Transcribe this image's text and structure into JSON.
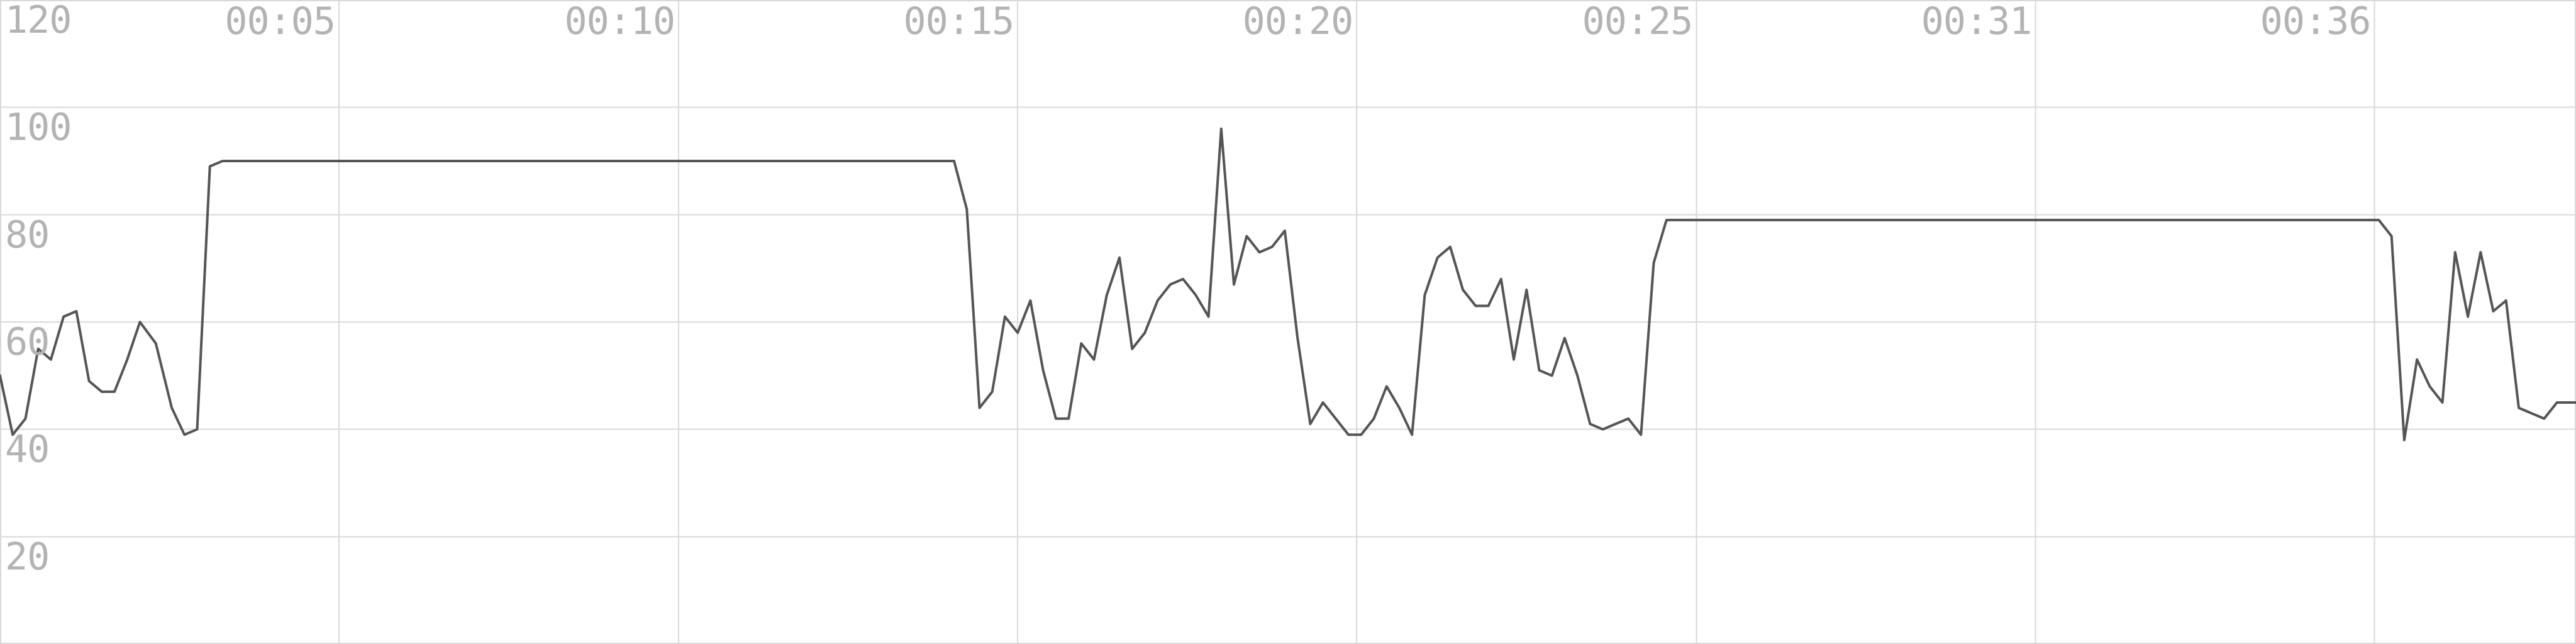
{
  "chart_data": {
    "type": "line",
    "title": "",
    "xlabel": "",
    "ylabel": "",
    "ylim": [
      0,
      120
    ],
    "xlim": [
      0,
      40.5
    ],
    "grid": true,
    "legend": "none",
    "colors": {
      "line": "#555555",
      "grid": "#d9d9d9",
      "tick_label": "#b3b3b3",
      "background": "#ffffff"
    },
    "y_ticks": [
      {
        "value": 120,
        "label": "120"
      },
      {
        "value": 100,
        "label": "100"
      },
      {
        "value": 80,
        "label": "80"
      },
      {
        "value": 60,
        "label": "60"
      },
      {
        "value": 40,
        "label": "40"
      },
      {
        "value": 20,
        "label": "20"
      }
    ],
    "x_ticks": [
      {
        "value": 5.33,
        "label": "00:05"
      },
      {
        "value": 10.67,
        "label": "00:10"
      },
      {
        "value": 16.0,
        "label": "00:15"
      },
      {
        "value": 21.33,
        "label": "00:20"
      },
      {
        "value": 26.67,
        "label": "00:25"
      },
      {
        "value": 32.0,
        "label": "00:31"
      },
      {
        "value": 37.33,
        "label": "00:36"
      }
    ],
    "series": [
      {
        "x": [
          0,
          0.2,
          0.4,
          0.6,
          0.8,
          1.0,
          1.2,
          1.4,
          1.6,
          1.8,
          2.0,
          2.2,
          2.45,
          2.7,
          2.9,
          3.1,
          3.3,
          3.5,
          3.7,
          3.9,
          4.1,
          4.3,
          4.5,
          4.7,
          4.9,
          5.1,
          5.3,
          5.5,
          5.8,
          6.5,
          7.5,
          8.5,
          9.5,
          10.5,
          11.5,
          12.5,
          13.5,
          14.5,
          15.0,
          15.2,
          15.4,
          15.6,
          15.8,
          16.0,
          16.2,
          16.4,
          16.6,
          16.8,
          17.0,
          17.2,
          17.4,
          17.6,
          17.8,
          18.0,
          18.2,
          18.4,
          18.6,
          18.8,
          19.0,
          19.2,
          19.4,
          19.6,
          19.8,
          20.0,
          20.2,
          20.4,
          20.6,
          20.8,
          21.0,
          21.2,
          21.4,
          21.6,
          21.8,
          22.0,
          22.2,
          22.4,
          22.6,
          22.8,
          23.0,
          23.2,
          23.4,
          23.6,
          23.8,
          24.0,
          24.2,
          24.4,
          24.6,
          24.8,
          25.0,
          25.2,
          25.4,
          25.6,
          25.8,
          26.0,
          26.2,
          26.4,
          26.6,
          26.8,
          27.0,
          27.5,
          28.5,
          29.5,
          29.7,
          29.9,
          30.5,
          31.5,
          32.5,
          33.5,
          34.5,
          35.5,
          36.5,
          37.4,
          37.6,
          37.8,
          38.0,
          38.2,
          38.4,
          38.6,
          38.8,
          39.0,
          39.2,
          39.4,
          39.6,
          39.8,
          40.0,
          40.2,
          40.4,
          40.5
        ],
        "values": [
          50,
          39,
          42,
          55,
          53,
          61,
          62,
          49,
          47,
          47,
          53,
          60,
          56,
          44,
          39,
          40,
          89,
          90,
          90,
          90,
          90,
          90,
          90,
          90,
          90,
          90,
          90,
          90,
          90,
          90,
          90,
          90,
          90,
          90,
          90,
          90,
          90,
          90,
          90,
          81,
          44,
          47,
          61,
          58,
          64,
          51,
          42,
          42,
          56,
          53,
          65,
          72,
          55,
          58,
          64,
          67,
          68,
          65,
          61,
          96,
          67,
          76,
          73,
          74,
          77,
          57,
          41,
          45,
          42,
          39,
          39,
          42,
          48,
          44,
          39,
          65,
          72,
          74,
          66,
          63,
          63,
          68,
          53,
          66,
          51,
          50,
          57,
          50,
          41,
          40,
          41,
          42,
          39,
          71,
          79,
          79,
          79,
          79,
          79,
          79,
          79,
          79,
          79,
          79,
          79,
          79,
          79,
          79,
          79,
          79,
          79,
          79,
          76,
          38,
          53,
          48,
          45,
          73,
          61,
          73,
          62,
          64,
          44,
          43,
          42,
          45,
          45,
          45
        ]
      }
    ]
  }
}
